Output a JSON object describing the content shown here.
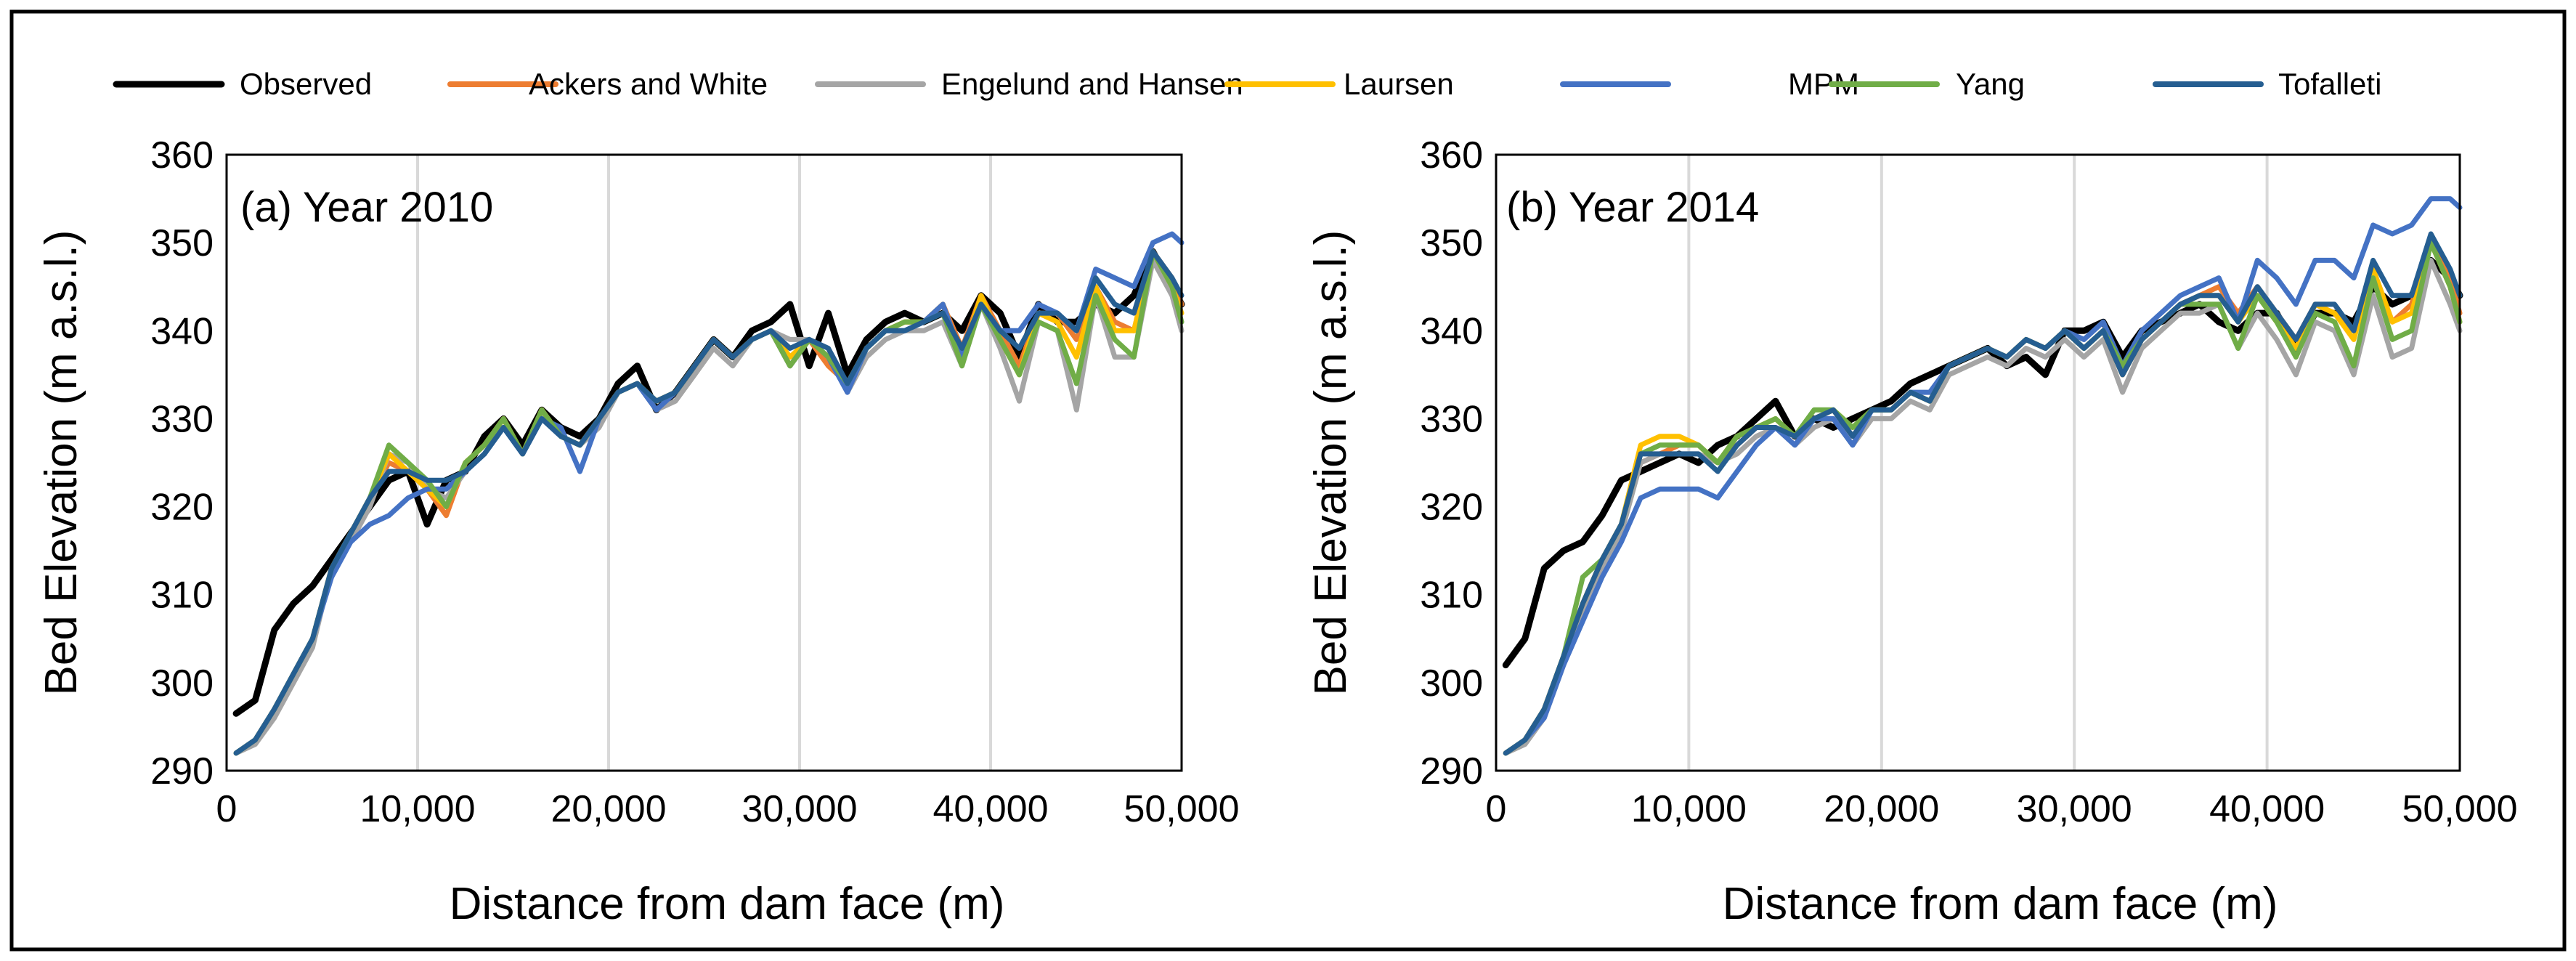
{
  "colors": {
    "Observed": "#000000",
    "Ackers and White": "#ED7D31",
    "Engelund and Hansen": "#A5A5A5",
    "Laursen": "#FFC000",
    "MPM": "#4472C4",
    "Yang": "#70AD47",
    "Tofalleti": "#255E91"
  },
  "chart_data": [
    {
      "type": "line",
      "title": "(a) Year 2010",
      "xlabel": "Distance from dam face (m)",
      "ylabel": "Bed Elevation (m a.s.l.)",
      "xlim": [
        0,
        50000
      ],
      "ylim": [
        290,
        360
      ],
      "xticks": [
        0,
        10000,
        20000,
        30000,
        40000,
        50000
      ],
      "xtick_labels": [
        "0",
        "10,000",
        "20,000",
        "30,000",
        "40,000",
        "50,000"
      ],
      "yticks": [
        290,
        300,
        310,
        320,
        330,
        340,
        350,
        360
      ],
      "ytick_labels": [
        "290",
        "300",
        "310",
        "320",
        "330",
        "340",
        "350",
        "360"
      ],
      "grid": "vertical",
      "legend": [
        "Observed",
        "Ackers and White",
        "Engelund and Hansen",
        "Laursen",
        "MPM",
        "Yang",
        "Tofalleti"
      ],
      "legend_position": "top",
      "x": [
        500,
        1500,
        2500,
        3500,
        4500,
        5500,
        6500,
        7500,
        8500,
        9500,
        10500,
        11500,
        12500,
        13500,
        14500,
        15500,
        16500,
        17500,
        18500,
        19500,
        20500,
        21500,
        22500,
        23500,
        24500,
        25500,
        26500,
        27500,
        28500,
        29500,
        30500,
        31500,
        32500,
        33500,
        34500,
        35500,
        36500,
        37500,
        38500,
        39500,
        40500,
        41500,
        42500,
        43500,
        44500,
        45500,
        46500,
        47500,
        48500,
        49500,
        50000
      ],
      "series": [
        {
          "name": "Observed",
          "values": [
            296.5,
            298,
            306,
            309,
            311,
            314,
            317,
            320,
            323,
            324,
            318,
            323,
            324,
            328,
            330,
            327,
            331,
            329,
            328,
            330,
            334,
            336,
            331,
            333,
            336,
            339,
            337,
            340,
            341,
            343,
            336,
            342,
            335,
            339,
            341,
            342,
            341,
            342,
            340,
            344,
            342,
            337,
            343,
            341,
            341,
            343,
            342,
            344,
            349,
            345,
            343
          ]
        },
        {
          "name": "Ackers and White",
          "values": [
            292,
            293.5,
            297,
            301,
            305,
            313,
            317,
            321,
            325,
            324,
            322,
            319,
            325,
            327,
            330,
            326,
            331,
            328,
            327,
            330,
            333,
            334,
            332,
            333,
            336,
            339,
            337,
            339,
            340,
            336,
            339,
            336,
            334,
            338,
            340,
            341,
            341,
            343,
            338,
            344,
            340,
            336,
            342,
            342,
            339,
            345,
            341,
            340,
            349,
            346,
            343
          ]
        },
        {
          "name": "Engelund and Hansen",
          "values": [
            292,
            293,
            296,
            300,
            304,
            313,
            316,
            320,
            326,
            325,
            322,
            321,
            324,
            326,
            329,
            326,
            330,
            328,
            327,
            329,
            333,
            334,
            331,
            332,
            335,
            338,
            336,
            339,
            340,
            339,
            339,
            338,
            333,
            337,
            339,
            340,
            340,
            341,
            336,
            343,
            338,
            332,
            341,
            340,
            331,
            344,
            337,
            337,
            348,
            344,
            340
          ]
        },
        {
          "name": "Laursen",
          "values": [
            292,
            293.5,
            297,
            301,
            305,
            313,
            317,
            321,
            326,
            324,
            322,
            320,
            325,
            327,
            330,
            326,
            331,
            328,
            327,
            330,
            333,
            334,
            332,
            333,
            336,
            339,
            337,
            339,
            340,
            337,
            339,
            337,
            334,
            338,
            340,
            341,
            341,
            343,
            337,
            344,
            339,
            335,
            342,
            341,
            337,
            345,
            340,
            340,
            349,
            345,
            342
          ]
        },
        {
          "name": "MPM",
          "values": [
            292,
            293.5,
            297,
            301,
            305,
            312,
            316,
            318,
            319,
            321,
            322,
            322,
            324,
            326,
            329,
            326,
            330,
            329,
            324,
            330,
            333,
            334,
            331,
            333,
            336,
            339,
            337,
            339,
            340,
            336,
            339,
            337,
            333,
            338,
            340,
            340,
            341,
            343,
            337,
            343,
            340,
            340,
            343,
            342,
            340,
            347,
            346,
            345,
            350,
            351,
            350
          ]
        },
        {
          "name": "Yang",
          "values": [
            292,
            293.5,
            297,
            301,
            305,
            313,
            317,
            321,
            327,
            325,
            323,
            320,
            325,
            327,
            330,
            326,
            331,
            328,
            327,
            330,
            333,
            334,
            332,
            333,
            336,
            339,
            337,
            339,
            340,
            336,
            339,
            337,
            334,
            338,
            340,
            341,
            341,
            342,
            336,
            343,
            339,
            335,
            341,
            340,
            334,
            344,
            339,
            337,
            349,
            345,
            341
          ]
        },
        {
          "name": "Tofalleti",
          "values": [
            292,
            293.5,
            297,
            301,
            305,
            313,
            317,
            321,
            324,
            324,
            323,
            323,
            324,
            326,
            329,
            326,
            330,
            328,
            327,
            330,
            333,
            334,
            332,
            333,
            336,
            339,
            337,
            339,
            340,
            338,
            339,
            338,
            334,
            338,
            340,
            340,
            341,
            342,
            338,
            343,
            340,
            338,
            342,
            342,
            340,
            346,
            343,
            342,
            349,
            346,
            344
          ]
        }
      ]
    },
    {
      "type": "line",
      "title": "(b) Year 2014",
      "xlabel": "Distance from dam face (m)",
      "ylabel": "Bed Elevation (m a.s.l.)",
      "xlim": [
        0,
        50000
      ],
      "ylim": [
        290,
        360
      ],
      "xticks": [
        0,
        10000,
        20000,
        30000,
        40000,
        50000
      ],
      "xtick_labels": [
        "0",
        "10,000",
        "20,000",
        "30,000",
        "40,000",
        "50,000"
      ],
      "yticks": [
        290,
        300,
        310,
        320,
        330,
        340,
        350,
        360
      ],
      "ytick_labels": [
        "290",
        "300",
        "310",
        "320",
        "330",
        "340",
        "350",
        "360"
      ],
      "grid": "vertical",
      "x": [
        500,
        1500,
        2500,
        3500,
        4500,
        5500,
        6500,
        7500,
        8500,
        9500,
        10500,
        11500,
        12500,
        13500,
        14500,
        15500,
        16500,
        17500,
        18500,
        19500,
        20500,
        21500,
        22500,
        23500,
        24500,
        25500,
        26500,
        27500,
        28500,
        29500,
        30500,
        31500,
        32500,
        33500,
        34500,
        35500,
        36500,
        37500,
        38500,
        39500,
        40500,
        41500,
        42500,
        43500,
        44500,
        45500,
        46500,
        47500,
        48500,
        49500,
        50000
      ],
      "series": [
        {
          "name": "Observed",
          "values": [
            302,
            305,
            313,
            315,
            316,
            319,
            323,
            324,
            325,
            326,
            325,
            327,
            328,
            330,
            332,
            328,
            330,
            329,
            330,
            331,
            332,
            334,
            335,
            336,
            337,
            338,
            336,
            337,
            335,
            340,
            340,
            341,
            337,
            340,
            341,
            342,
            343,
            341,
            340,
            342,
            342,
            338,
            342,
            342,
            341,
            345,
            343,
            344,
            348,
            346,
            344
          ]
        },
        {
          "name": "Ackers and White",
          "values": [
            292,
            293.5,
            297,
            303,
            309,
            314,
            318,
            325,
            326,
            327,
            327,
            325,
            327,
            329,
            329,
            328,
            330,
            331,
            328,
            331,
            331,
            333,
            332,
            336,
            337,
            338,
            337,
            339,
            338,
            340,
            338,
            340,
            335,
            339,
            341,
            343,
            344,
            345,
            342,
            345,
            342,
            339,
            343,
            342,
            340,
            347,
            341,
            343,
            350,
            346,
            342
          ]
        },
        {
          "name": "Engelund and Hansen",
          "values": [
            292,
            293,
            296,
            302,
            308,
            313,
            317,
            325,
            326,
            326,
            326,
            325,
            326,
            328,
            329,
            327,
            329,
            330,
            327,
            330,
            330,
            332,
            331,
            335,
            336,
            337,
            336,
            338,
            337,
            339,
            337,
            339,
            333,
            338,
            340,
            342,
            342,
            343,
            338,
            342,
            339,
            335,
            341,
            340,
            335,
            344,
            337,
            338,
            348,
            343,
            340
          ]
        },
        {
          "name": "Laursen",
          "values": [
            292,
            293.5,
            297,
            303,
            309,
            314,
            318,
            327,
            328,
            328,
            327,
            325,
            328,
            329,
            330,
            328,
            330,
            331,
            329,
            331,
            331,
            333,
            332,
            336,
            337,
            338,
            337,
            339,
            338,
            340,
            338,
            340,
            335,
            339,
            341,
            343,
            344,
            344,
            341,
            344,
            341,
            338,
            343,
            342,
            339,
            347,
            341,
            342,
            350,
            345,
            341
          ]
        },
        {
          "name": "MPM",
          "values": [
            292,
            293.5,
            296,
            302,
            307,
            312,
            316,
            321,
            322,
            322,
            322,
            321,
            324,
            327,
            329,
            327,
            330,
            330,
            327,
            331,
            331,
            333,
            333,
            336,
            337,
            338,
            337,
            339,
            338,
            340,
            339,
            341,
            336,
            340,
            342,
            344,
            345,
            346,
            341,
            348,
            346,
            343,
            348,
            348,
            346,
            352,
            351,
            352,
            355,
            355,
            354
          ]
        },
        {
          "name": "Yang",
          "values": [
            292,
            293.5,
            297,
            303,
            312,
            314,
            318,
            326,
            327,
            327,
            327,
            325,
            328,
            329,
            330,
            328,
            331,
            331,
            329,
            331,
            331,
            333,
            332,
            336,
            337,
            338,
            337,
            339,
            338,
            340,
            338,
            340,
            336,
            339,
            341,
            343,
            343,
            343,
            338,
            344,
            341,
            337,
            342,
            341,
            336,
            346,
            339,
            340,
            350,
            345,
            341
          ]
        },
        {
          "name": "Tofalleti",
          "values": [
            292,
            293.5,
            297,
            303,
            309,
            314,
            318,
            326,
            326,
            326,
            326,
            324,
            327,
            329,
            329,
            328,
            330,
            331,
            328,
            331,
            331,
            333,
            332,
            336,
            337,
            338,
            337,
            339,
            338,
            340,
            338,
            340,
            335,
            339,
            341,
            343,
            344,
            344,
            341,
            345,
            342,
            339,
            343,
            343,
            340,
            348,
            344,
            344,
            351,
            347,
            344
          ]
        }
      ]
    }
  ]
}
